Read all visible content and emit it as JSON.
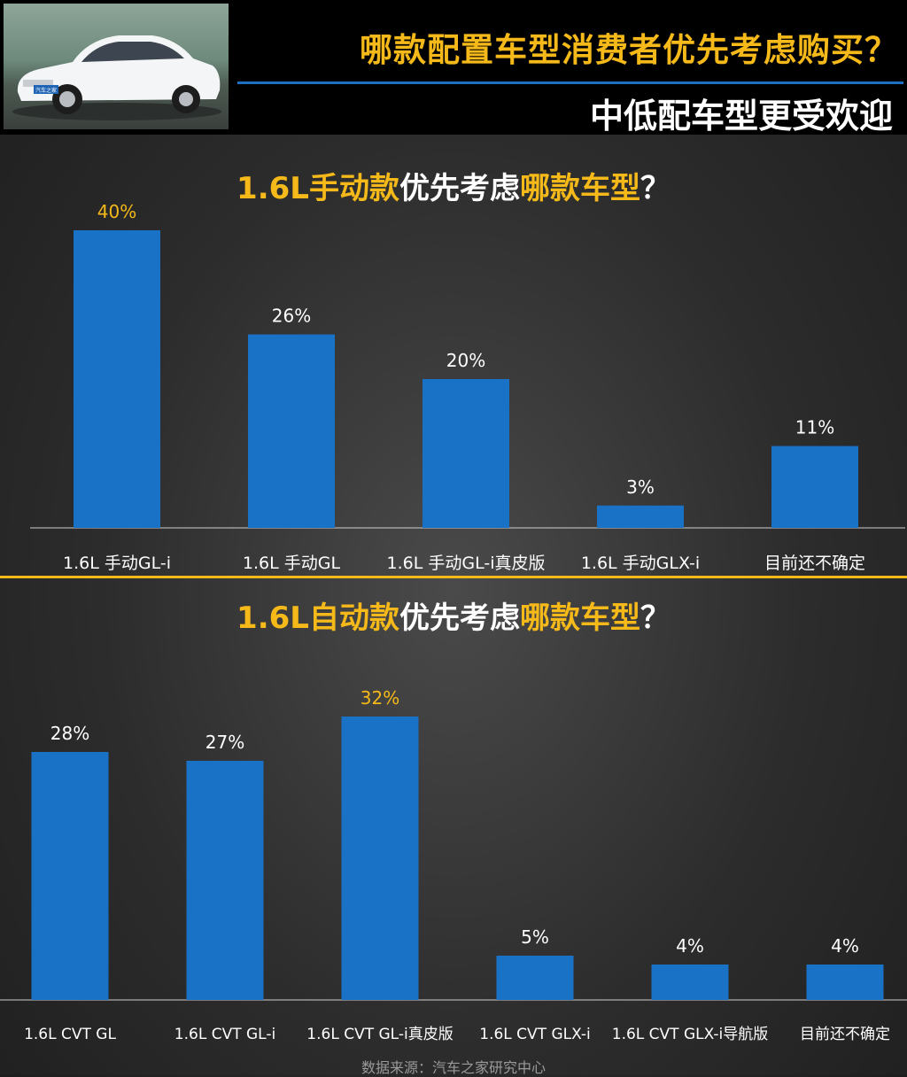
{
  "header": {
    "title": "哪款配置车型消费者优先考虑购买？",
    "subtitle": "中低配车型更受欢迎",
    "plate_text": "汽车之家"
  },
  "colors": {
    "bar": "#1a72c7",
    "accent": "#f5b919",
    "label": "#ffffff"
  },
  "chart_data": [
    {
      "type": "bar",
      "title_parts": [
        {
          "text": "1.6L手动款",
          "highlight": true
        },
        {
          "text": "优先考虑",
          "highlight": false
        },
        {
          "text": "哪款车型",
          "highlight": true
        },
        {
          "text": "？",
          "highlight": false
        }
      ],
      "categories": [
        "1.6L 手动GL-i",
        "1.6L 手动GL",
        "1.6L 手动GL-i真皮版",
        "1.6L 手动GLX-i",
        "目前还不确定"
      ],
      "values": [
        40,
        26,
        20,
        3,
        11
      ],
      "value_labels": [
        "40%",
        "26%",
        "20%",
        "3%",
        "11%"
      ],
      "highlight_index": 0,
      "ylim": [
        0,
        40
      ],
      "grid": false
    },
    {
      "type": "bar",
      "title_parts": [
        {
          "text": "1.6L自动款",
          "highlight": true
        },
        {
          "text": "优先考虑",
          "highlight": false
        },
        {
          "text": "哪款车型",
          "highlight": true
        },
        {
          "text": "？",
          "highlight": false
        }
      ],
      "categories": [
        "1.6L CVT GL",
        "1.6L CVT GL-i",
        "1.6L CVT GL-i真皮版",
        "1.6L CVT GLX-i",
        "1.6L CVT GLX-i导航版",
        "目前还不确定"
      ],
      "values": [
        28,
        27,
        32,
        5,
        4,
        4
      ],
      "value_labels": [
        "28%",
        "27%",
        "32%",
        "5%",
        "4%",
        "4%"
      ],
      "highlight_index": 2,
      "ylim": [
        0,
        32
      ],
      "grid": false
    }
  ],
  "footer": {
    "source": "数据来源：汽车之家研究中心"
  }
}
